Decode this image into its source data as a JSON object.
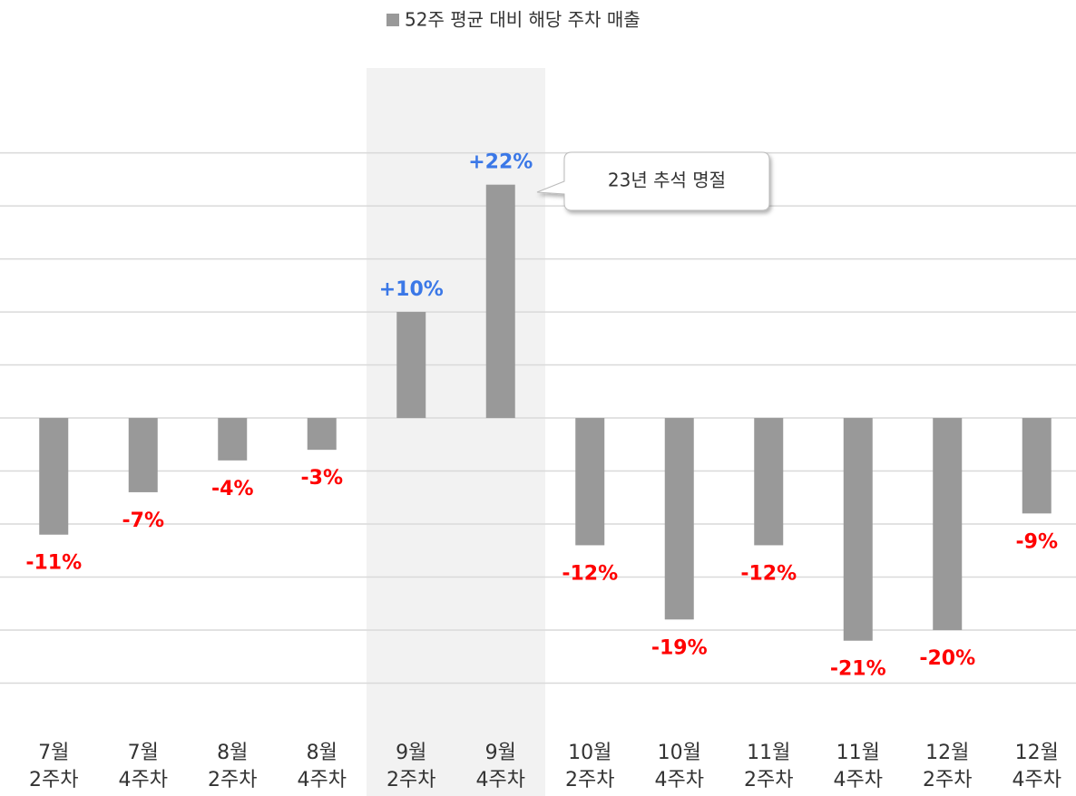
{
  "chart_data": {
    "type": "bar",
    "legend": "52주 평균 대비 해당 주차 매출",
    "annotation": "23년 추석 명절",
    "categories": [
      "7월\n2주차",
      "7월\n4주차",
      "8월\n2주차",
      "8월\n4주차",
      "9월\n2주차",
      "9월\n4주차",
      "10월\n2주차",
      "10월\n4주차",
      "11월\n2주차",
      "11월\n4주차",
      "12월\n2주차",
      "12월\n4주차"
    ],
    "values": [
      -11,
      -7,
      -4,
      -3,
      10,
      22,
      -12,
      -19,
      -12,
      -21,
      -20,
      -9
    ],
    "value_labels": [
      "-11%",
      "-7%",
      "-4%",
      "-3%",
      "+10%",
      "+22%",
      "-12%",
      "-19%",
      "-12%",
      "-21%",
      "-20%",
      "-9%"
    ],
    "color": "#999999",
    "positive_label_color": "#3b78e7",
    "negative_label_color": "#ff0000",
    "ylim": [
      -30,
      33
    ],
    "yticks": [
      -25,
      -20,
      -15,
      -10,
      -5,
      0,
      5,
      10,
      15,
      20,
      25
    ],
    "grid": true
  }
}
